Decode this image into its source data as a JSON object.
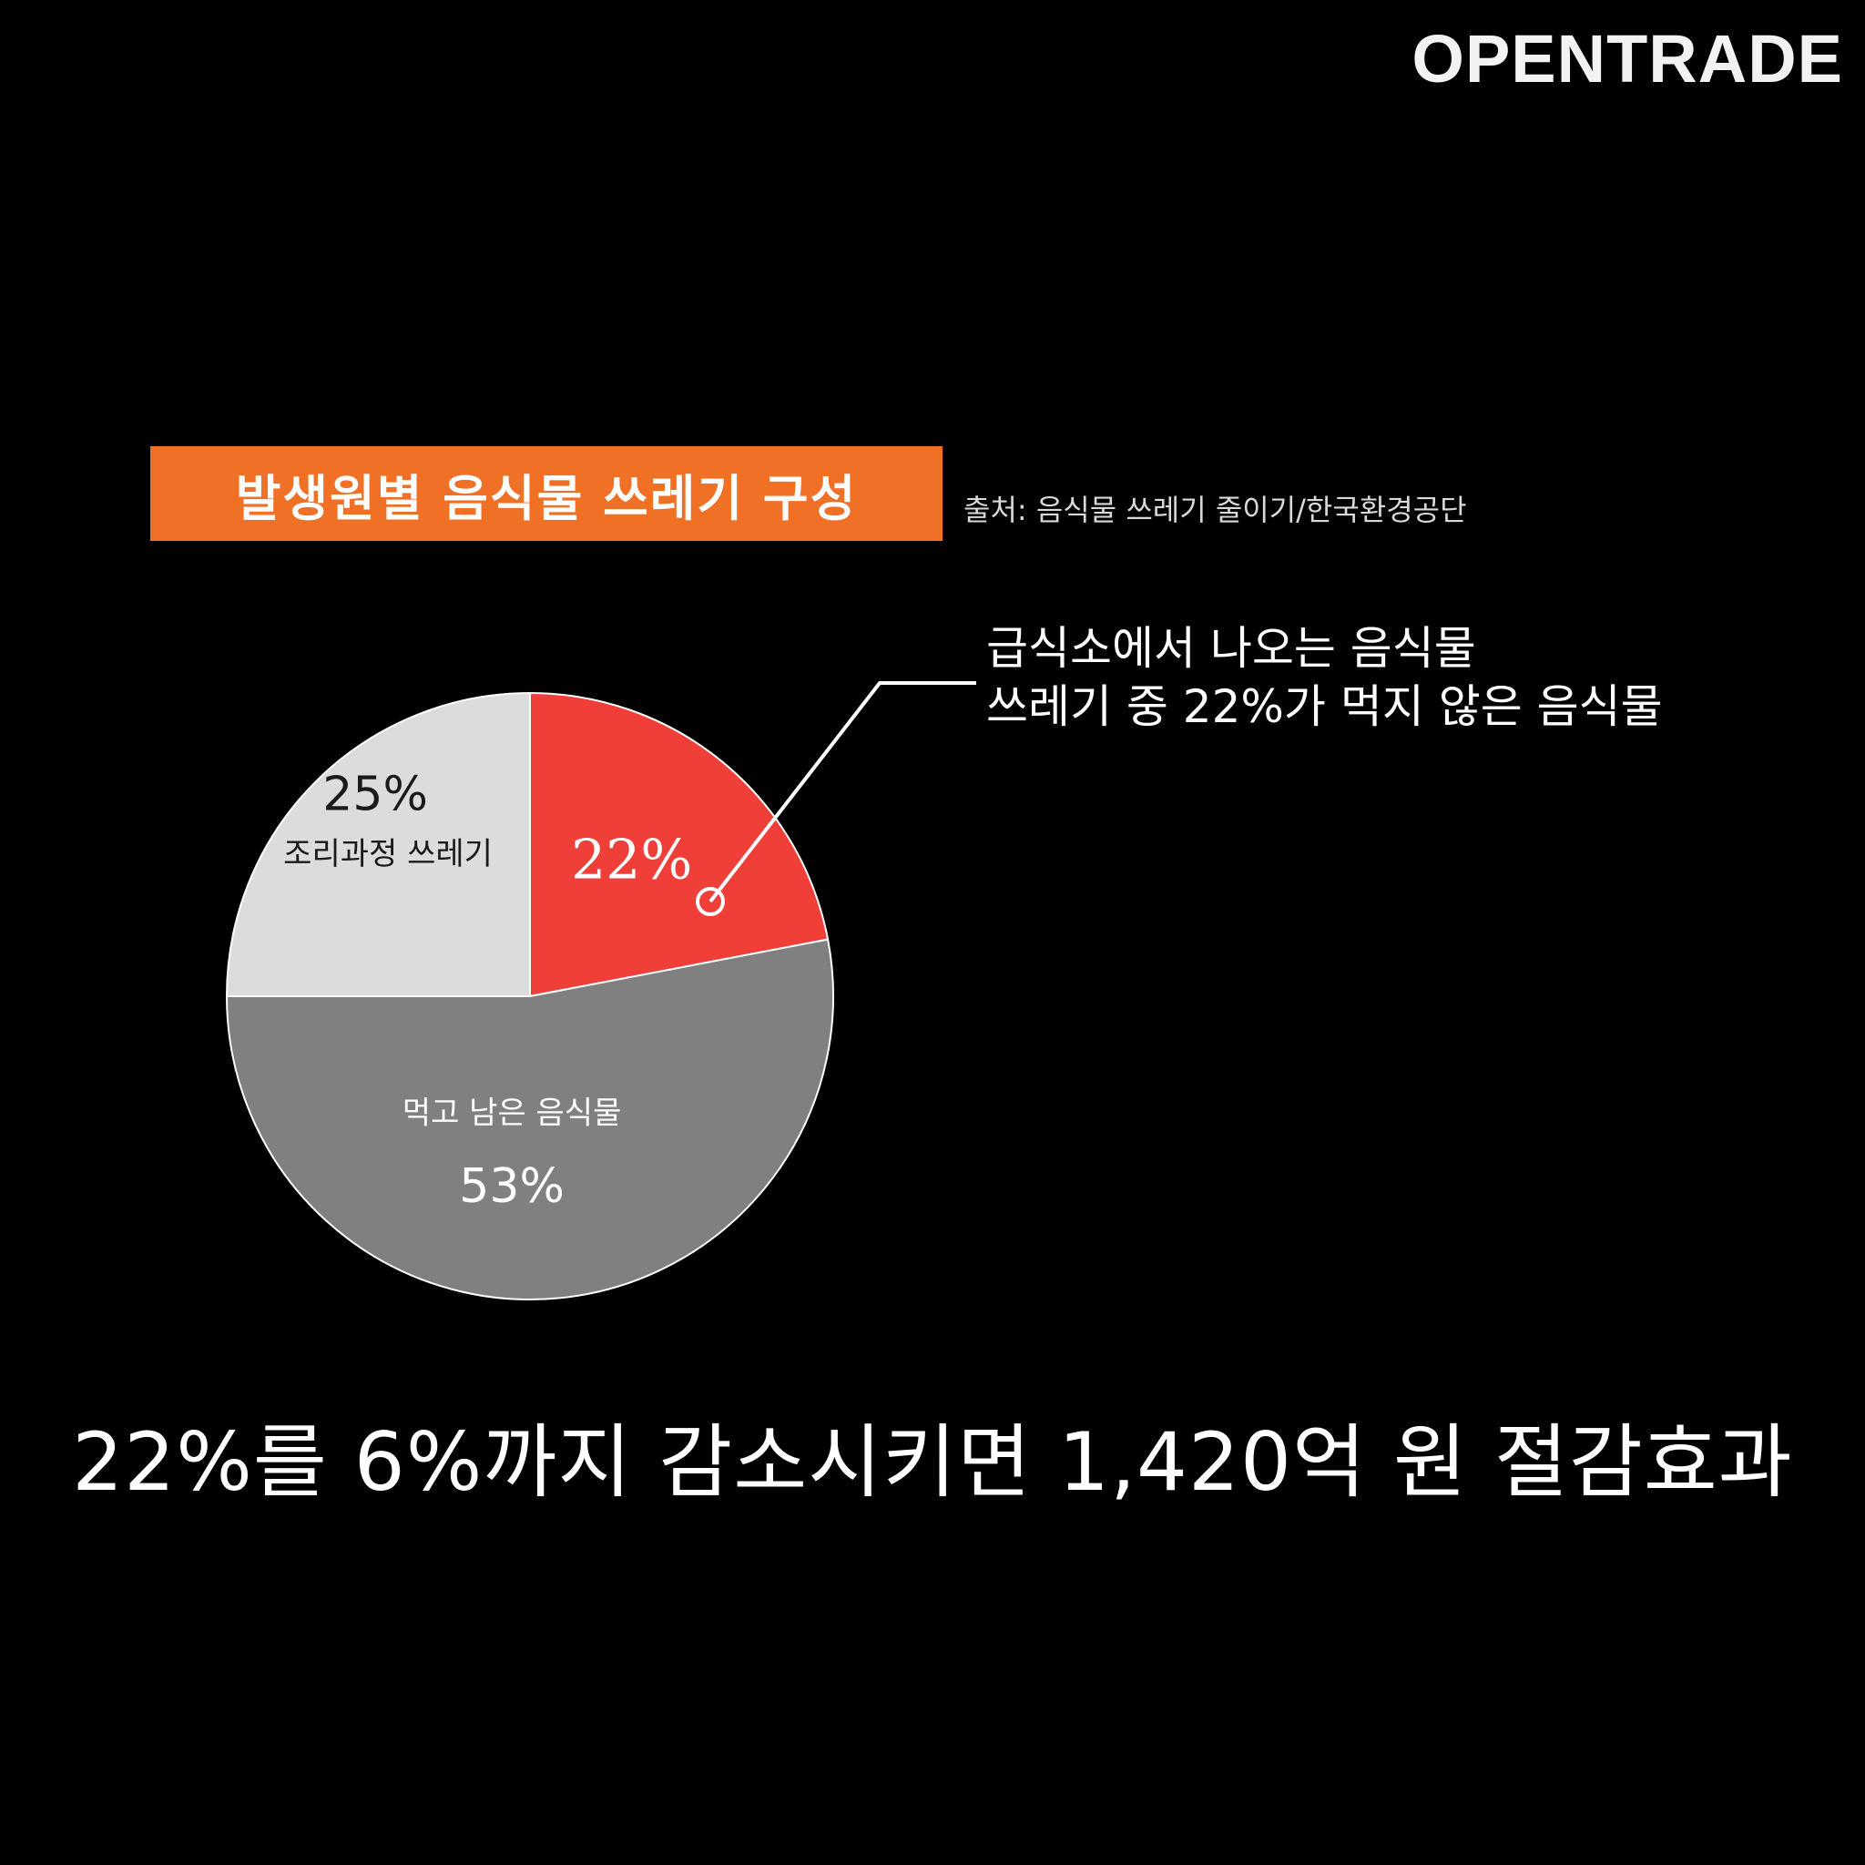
{
  "brand": "OPENTRADE",
  "title": "발생원별 음식물 쓰레기 구성",
  "source": "출처: 음식물 쓰레기 줄이기/한국환경공단",
  "callout": {
    "line1": "급식소에서 나오는 음식물",
    "line2": "쓰레기 중 22%가 먹지 않은 음식물"
  },
  "conclusion": "22%를 6%까지 감소시키면 1,420억 원 절감효과",
  "colors": {
    "accent": "#f07026",
    "uneaten": "#ef3f38",
    "leftover": "#808080",
    "cooking": "#dcdcdc"
  },
  "chart_data": {
    "type": "pie",
    "title": "발생원별 음식물 쓰레기 구성",
    "slices": [
      {
        "label": "",
        "value": 22,
        "value_label": "22%",
        "color": "#ef3f38"
      },
      {
        "label": "먹고 남은 음식물",
        "value": 53,
        "value_label": "53%",
        "color": "#808080"
      },
      {
        "label": "조리과정 쓰레기",
        "value": 25,
        "value_label": "25%",
        "color": "#dcdcdc"
      }
    ]
  }
}
